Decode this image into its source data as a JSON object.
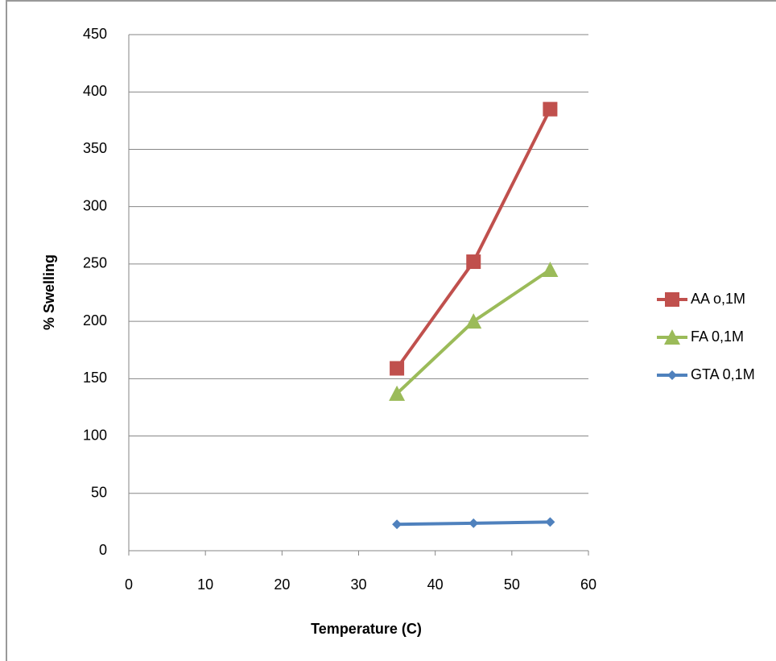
{
  "chart_data": {
    "type": "line",
    "x_label": "Temperature (C)",
    "y_label": "% Swelling",
    "series": [
      {
        "name": "AA o,1M",
        "color": "#c0504d",
        "marker": "square",
        "x": [
          35,
          45,
          55
        ],
        "values": [
          159,
          252,
          385
        ]
      },
      {
        "name": "FA 0,1M",
        "color": "#9bbb59",
        "marker": "triangle",
        "x": [
          35,
          45,
          55
        ],
        "values": [
          137,
          200,
          245
        ]
      },
      {
        "name": "GTA 0,1M",
        "color": "#4f81bd",
        "marker": "diamond",
        "x": [
          35,
          45,
          55
        ],
        "values": [
          23,
          24,
          25
        ]
      }
    ],
    "xlim": [
      0,
      60
    ],
    "xticks": [
      0,
      10,
      20,
      30,
      40,
      50,
      60
    ],
    "ylim": [
      0,
      450
    ],
    "yticks": [
      0,
      50,
      100,
      150,
      200,
      250,
      300,
      350,
      400,
      450
    ],
    "grid": true,
    "legend": "right"
  }
}
